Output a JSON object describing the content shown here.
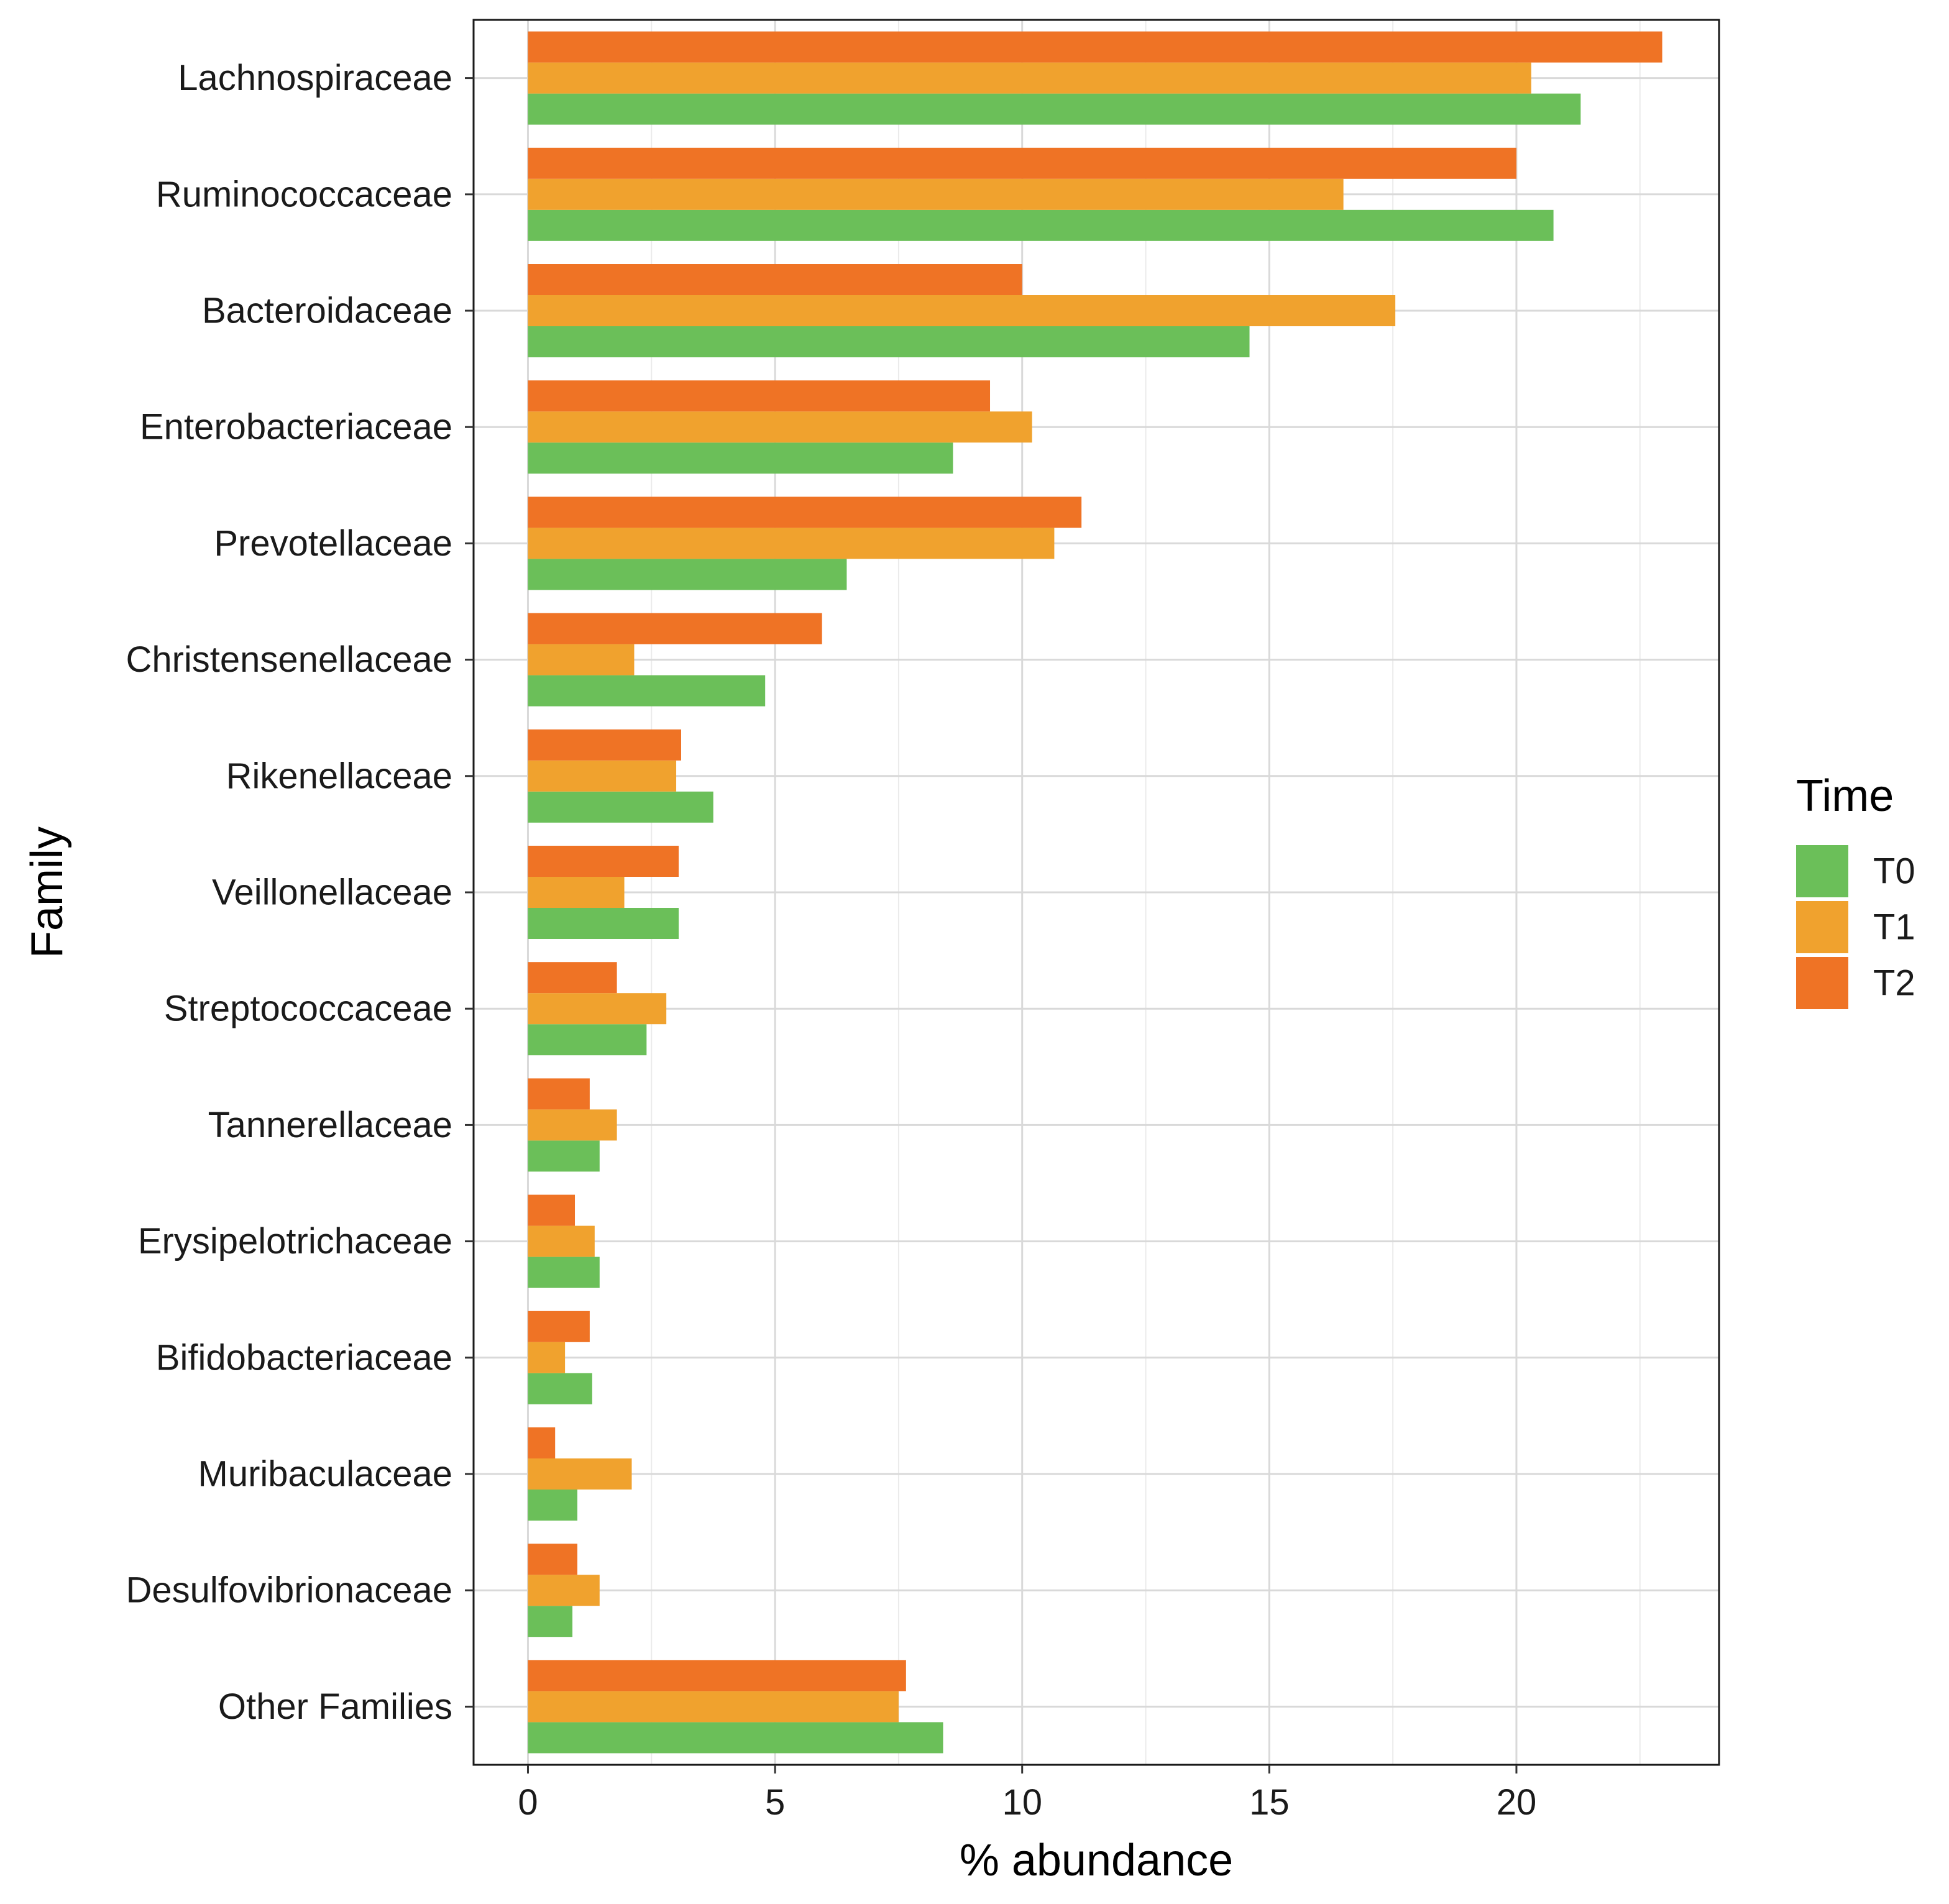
{
  "chart_data": {
    "type": "bar",
    "orientation": "horizontal",
    "title": "",
    "xlabel": "% abundance",
    "ylabel": "Family",
    "xlim": [
      -1.1,
      24.1
    ],
    "xticks": [
      0,
      5,
      10,
      15,
      20
    ],
    "xtick_labels": [
      "0",
      "5",
      "10",
      "15",
      "20"
    ],
    "grid": true,
    "legend": {
      "title": "Time",
      "position": "right",
      "entries": [
        "T0",
        "T1",
        "T2"
      ]
    },
    "categories": [
      "Lachnospiraceae",
      "Ruminococcaceae",
      "Bacteroidaceae",
      "Enterobacteriaceae",
      "Prevotellaceae",
      "Christensenellaceae",
      "Rikenellaceae",
      "Veillonellaceae",
      "Streptococcaceae",
      "Tannerellaceae",
      "Erysipelotrichaceae",
      "Bifidobacteriaceae",
      "Muribaculaceae",
      "Desulfovibrionaceae",
      "Other Families"
    ],
    "series": [
      {
        "name": "T0",
        "color": "#6bbf59",
        "values": [
          21.3,
          20.75,
          14.6,
          8.6,
          6.45,
          4.8,
          3.75,
          3.05,
          2.4,
          1.45,
          1.45,
          1.3,
          1.0,
          0.9,
          8.4
        ]
      },
      {
        "name": "T1",
        "color": "#f0a22e",
        "values": [
          20.3,
          16.5,
          17.55,
          10.2,
          10.65,
          2.15,
          3.0,
          1.95,
          2.8,
          1.8,
          1.35,
          0.75,
          2.1,
          1.45,
          7.5
        ]
      },
      {
        "name": "T2",
        "color": "#ef7325",
        "values": [
          22.95,
          20.0,
          10.0,
          9.35,
          11.2,
          5.95,
          3.1,
          3.05,
          1.8,
          1.25,
          0.95,
          1.25,
          0.55,
          1.0,
          7.65
        ]
      }
    ]
  }
}
